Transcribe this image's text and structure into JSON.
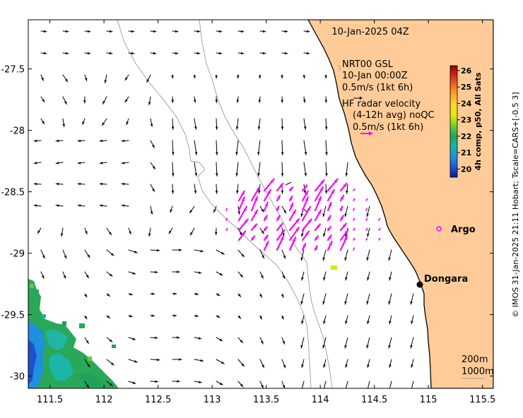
{
  "map": {
    "timestamp": "10-Jan-2025 04Z",
    "lon_ticks": [
      "111.5",
      "112",
      "112.5",
      "113",
      "113.5",
      "114",
      "114.5",
      "115",
      "115.5"
    ],
    "lat_ticks": [
      "-27.5",
      "-28",
      "-28.5",
      "-29",
      "-29.5",
      "-30"
    ],
    "lon_range": [
      111.3,
      115.6
    ],
    "lat_range": [
      -27.1,
      -30.1
    ],
    "legend": {
      "model_title": "NRT00 GSL",
      "model_time": "10-Jan 00:00Z",
      "model_scale": "0.5m/s (1kt 6h)",
      "radar_title": "HF radar velocity",
      "radar_detail": "(4-12h avg) noQC",
      "radar_scale": "0.5m/s (1kt 6h)"
    },
    "colorbar": {
      "label": "4h comp, p50, All Sats",
      "ticks": [
        "26",
        "25",
        "24",
        "23",
        "22",
        "21",
        "20"
      ],
      "range": [
        19.5,
        26.3
      ],
      "colors": [
        "#8b0000",
        "#d7301f",
        "#fc8d26",
        "#ffd92f",
        "#e8e800",
        "#66c83c",
        "#1fa35a",
        "#1cb5a8",
        "#1f8fe0",
        "#1f4fd0",
        "#0c1a8a"
      ]
    },
    "places": [
      {
        "name": "Argo",
        "lon": 115.05,
        "lat": -28.88
      },
      {
        "name": "Dongara",
        "lon": 114.93,
        "lat": -29.25
      }
    ],
    "depth_legend": {
      "line1": "200m",
      "line2": "1000m"
    },
    "credit": "© IMOS 31-Jan-2025 21:11 Hobart; Tscale=CARS+[-0.5 3]",
    "colors": {
      "land": "#ffcc99",
      "model_arrow": "#000000",
      "radar_arrow": "#ff00ff",
      "isobath": "#9a9a9a"
    }
  }
}
